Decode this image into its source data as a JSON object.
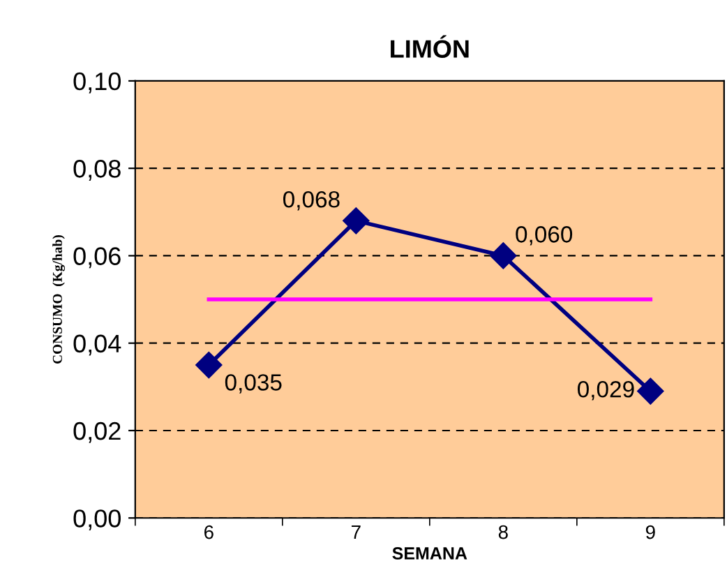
{
  "chart_data": {
    "type": "line",
    "title": "LIMÓN",
    "xlabel": "SEMANA",
    "ylabel": "CONSUMO  (Kg/hab)",
    "categories": [
      "6",
      "7",
      "8",
      "9"
    ],
    "series": [
      {
        "color": "#000080",
        "values": [
          0.035,
          0.068,
          0.06,
          0.029
        ],
        "marker": "diamond",
        "value_labels": [
          "0,035",
          "0,068",
          "0,060",
          "0,029"
        ]
      },
      {
        "color": "#ff00ff",
        "values": [
          0.05,
          0.05,
          0.05,
          0.05
        ],
        "marker": "none"
      }
    ],
    "ylim": [
      0,
      0.1
    ],
    "yticks": [
      {
        "value": 0,
        "label": "0,00"
      },
      {
        "value": 0.02,
        "label": "0,02"
      },
      {
        "value": 0.04,
        "label": "0,04"
      },
      {
        "value": 0.06,
        "label": "0,06"
      },
      {
        "value": 0.08,
        "label": "0,08"
      },
      {
        "value": 0.1,
        "label": "0,10"
      }
    ],
    "grid": "y",
    "line_style": "solid",
    "legend": false
  }
}
